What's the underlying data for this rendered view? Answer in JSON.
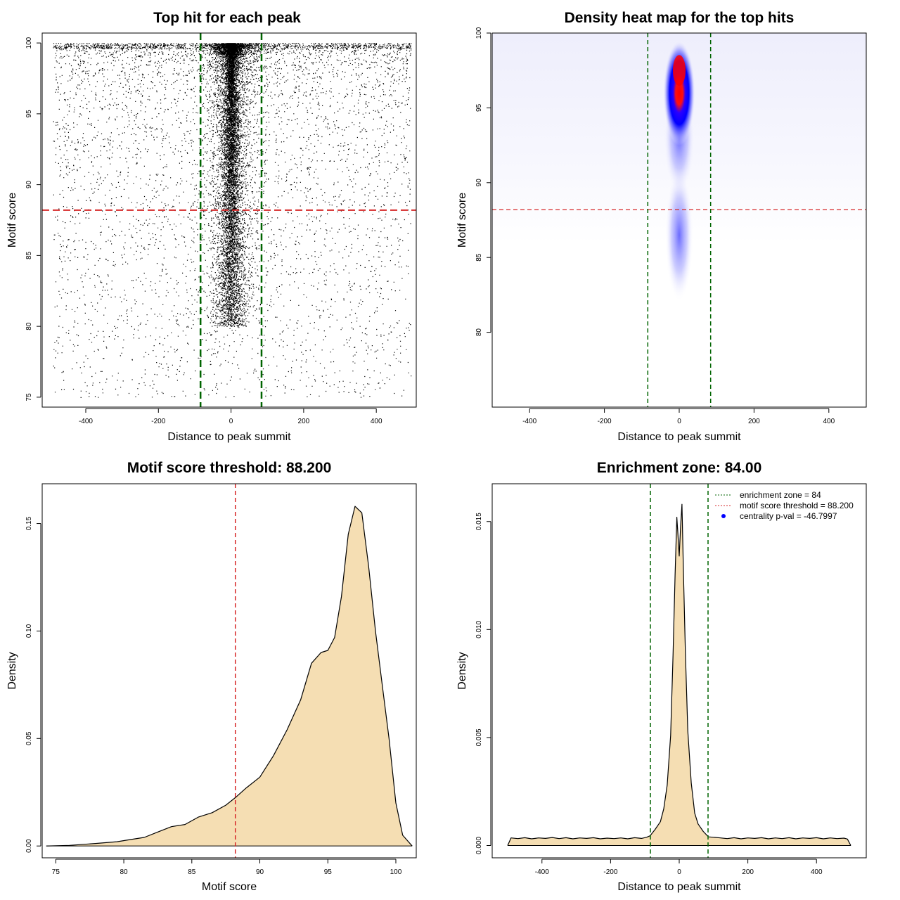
{
  "colors": {
    "threshold": "#d62728",
    "zone": "#006400",
    "fill": "#f5deb3",
    "heat_low": "#ffffff",
    "heat_mid": "#0000ff",
    "heat_high": "#ff0000",
    "centrality": "#0000ff"
  },
  "chart_data": [
    {
      "id": "scatter",
      "type": "scatter",
      "title": "Top hit for each peak",
      "xlabel": "Distance to peak summit",
      "ylabel": "Motif score",
      "xlim": [
        -500,
        500
      ],
      "ylim": [
        75,
        100
      ],
      "xticks": [
        -400,
        -200,
        0,
        200,
        400
      ],
      "yticks": [
        75,
        80,
        85,
        90,
        95,
        100
      ],
      "xtick_labels": [
        "-400",
        "-200",
        "0",
        "200",
        "400"
      ],
      "ytick_labels": [
        "75",
        "80",
        "85",
        "90",
        "95",
        "100"
      ],
      "threshold": 88.2,
      "zone": [
        -84,
        84
      ]
    },
    {
      "id": "heatmap",
      "type": "heatmap",
      "title": "Density heat map for the top hits",
      "xlabel": "Distance to peak summit",
      "ylabel": "Motif score",
      "xlim": [
        -500,
        500
      ],
      "ylim": [
        75,
        100
      ],
      "xticks": [
        -400,
        -200,
        0,
        200,
        400
      ],
      "yticks": [
        80,
        85,
        90,
        95,
        100
      ],
      "xtick_labels": [
        "-400",
        "-200",
        "0",
        "200",
        "400"
      ],
      "ytick_labels": [
        "80",
        "85",
        "90",
        "95",
        "100"
      ],
      "peak": {
        "x": 0,
        "y": 97.5
      },
      "threshold": 88.2,
      "zone": [
        -84,
        84
      ]
    },
    {
      "id": "scoredensity",
      "type": "area",
      "title": "Motif score threshold: 88.200",
      "xlabel": "Motif score",
      "ylabel": "Density",
      "xlim": [
        74,
        101.5
      ],
      "ylim": [
        0,
        0.16
      ],
      "xticks": [
        75,
        80,
        85,
        90,
        95,
        100
      ],
      "yticks": [
        0,
        0.05,
        0.1,
        0.15
      ],
      "xtick_labels": [
        "75",
        "80",
        "85",
        "90",
        "95",
        "100"
      ],
      "ytick_labels": [
        "0.00",
        "0.05",
        "0.10",
        "0.15"
      ],
      "threshold": 88.2,
      "x": [
        74.3,
        76,
        78,
        79.5,
        80.5,
        81.5,
        82.5,
        83.5,
        84.5,
        85.5,
        86.5,
        87.5,
        88.2,
        89,
        90,
        91,
        92,
        93,
        93.8,
        94.5,
        95,
        95.5,
        96,
        96.5,
        97,
        97.5,
        98,
        98.5,
        99,
        99.5,
        100,
        100.5,
        101.2
      ],
      "y": [
        0,
        0.0003,
        0.0012,
        0.002,
        0.003,
        0.004,
        0.0065,
        0.009,
        0.01,
        0.0135,
        0.0155,
        0.019,
        0.0225,
        0.027,
        0.032,
        0.042,
        0.054,
        0.068,
        0.085,
        0.09,
        0.091,
        0.097,
        0.116,
        0.145,
        0.158,
        0.155,
        0.13,
        0.1,
        0.075,
        0.05,
        0.02,
        0.005,
        0
      ]
    },
    {
      "id": "distdensity",
      "type": "area",
      "title": "Enrichment zone: 84.00",
      "xlabel": "Distance to peak summit",
      "ylabel": "Density",
      "xlim": [
        -545,
        545
      ],
      "ylim": [
        0,
        0.0165
      ],
      "xticks": [
        -400,
        -200,
        0,
        200,
        400
      ],
      "yticks": [
        0,
        0.005,
        0.01,
        0.015
      ],
      "xtick_labels": [
        "-400",
        "-200",
        "0",
        "200",
        "400"
      ],
      "ytick_labels": [
        "0.000",
        "0.005",
        "0.010",
        "0.015"
      ],
      "zone": [
        -84,
        84
      ],
      "x": [
        -500,
        -490,
        -470,
        -450,
        -430,
        -410,
        -390,
        -370,
        -350,
        -330,
        -310,
        -290,
        -270,
        -250,
        -230,
        -210,
        -190,
        -170,
        -150,
        -130,
        -110,
        -95,
        -85,
        -70,
        -55,
        -45,
        -35,
        -25,
        -18,
        -12,
        -7,
        -4,
        0,
        4,
        8,
        12,
        18,
        25,
        35,
        45,
        55,
        70,
        85,
        100,
        120,
        140,
        160,
        180,
        200,
        220,
        240,
        260,
        280,
        300,
        320,
        340,
        360,
        380,
        400,
        420,
        440,
        460,
        480,
        490,
        500
      ],
      "y": [
        0,
        0.00035,
        0.00032,
        0.00036,
        0.00031,
        0.00035,
        0.00033,
        0.00037,
        0.00032,
        0.00036,
        0.00031,
        0.00035,
        0.00033,
        0.00036,
        0.00031,
        0.00034,
        0.00032,
        0.00035,
        0.00031,
        0.00036,
        0.00033,
        0.00038,
        0.00045,
        0.00075,
        0.0011,
        0.0017,
        0.0028,
        0.0051,
        0.0088,
        0.0125,
        0.0152,
        0.0145,
        0.0134,
        0.0148,
        0.0158,
        0.0128,
        0.0089,
        0.0053,
        0.0029,
        0.0015,
        0.001,
        0.00065,
        0.0004,
        0.00038,
        0.00035,
        0.00032,
        0.00036,
        0.00031,
        0.00035,
        0.00033,
        0.00036,
        0.00031,
        0.00035,
        0.00032,
        0.00036,
        0.00031,
        0.00035,
        0.00033,
        0.00036,
        0.00031,
        0.00035,
        0.00032,
        0.00034,
        0.0003,
        0
      ],
      "legend": [
        {
          "label": "enrichment zone = 84",
          "kind": "line",
          "color": "#006400"
        },
        {
          "label": "motif score threshold = 88.200",
          "kind": "line",
          "color": "#d62728"
        },
        {
          "label": "centrality p-val = -46.7997",
          "kind": "point",
          "color": "#0000ff"
        }
      ]
    }
  ]
}
